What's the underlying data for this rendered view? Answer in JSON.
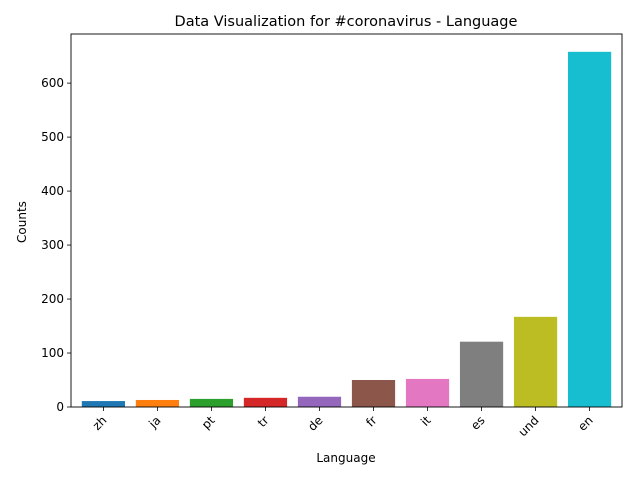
{
  "chart_data": {
    "type": "bar",
    "title": "Data Visualization for #coronavirus - Language",
    "xlabel": "Language",
    "ylabel": "Counts",
    "categories": [
      "zh",
      "ja",
      "pt",
      "tr",
      "de",
      "fr",
      "it",
      "es",
      "und",
      "en"
    ],
    "values": [
      11,
      13,
      15,
      17,
      19,
      50,
      52,
      121,
      167,
      658
    ],
    "colors": [
      "#1f77b4",
      "#ff7f0e",
      "#2ca02c",
      "#d62728",
      "#9467bd",
      "#8c564b",
      "#e377c2",
      "#7f7f7f",
      "#bcbd22",
      "#17becf"
    ],
    "yticks": [
      0,
      100,
      200,
      300,
      400,
      500,
      600
    ],
    "ylim": [
      0,
      691
    ],
    "grid": false,
    "legend": "none"
  }
}
